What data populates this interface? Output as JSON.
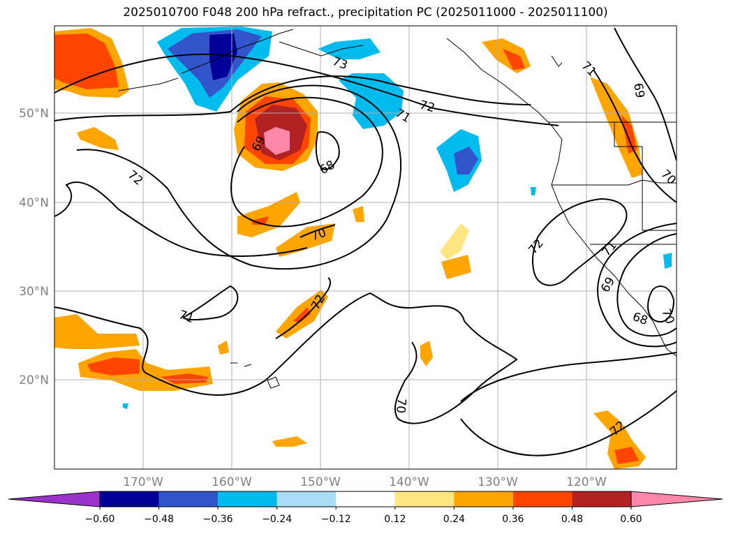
{
  "title": "2025010700 F048 200 hPa refract., precipitation PC (2025011000 - 2025011100)",
  "lat_labels": [
    "50°N",
    "40°N",
    "30°N",
    "20°N"
  ],
  "lon_labels": [
    "170°W",
    "160°W",
    "150°W",
    "140°W",
    "130°W",
    "120°W"
  ],
  "contour_labels": [
    {
      "id": "c73",
      "text": "73"
    },
    {
      "id": "c72a",
      "text": "72"
    },
    {
      "id": "c71a",
      "text": "71"
    },
    {
      "id": "c71b",
      "text": "71"
    },
    {
      "id": "c69a",
      "text": "69"
    },
    {
      "id": "c72b",
      "text": "72"
    },
    {
      "id": "c69b",
      "text": "69"
    },
    {
      "id": "c68a",
      "text": "68"
    },
    {
      "id": "c70a",
      "text": "70"
    },
    {
      "id": "c70b",
      "text": "70"
    },
    {
      "id": "c72c",
      "text": "72"
    },
    {
      "id": "c71c",
      "text": "71"
    },
    {
      "id": "c72d",
      "text": "72"
    },
    {
      "id": "c71d",
      "text": "71"
    },
    {
      "id": "c69c",
      "text": "69"
    },
    {
      "id": "c68b",
      "text": "68"
    },
    {
      "id": "c70c",
      "text": "70"
    },
    {
      "id": "c70d",
      "text": "70"
    },
    {
      "id": "c72e",
      "text": "72"
    }
  ],
  "colorbar": {
    "ticks": [
      "−0.60",
      "−0.48",
      "−0.36",
      "−0.24",
      "−0.12",
      "0.12",
      "0.24",
      "0.36",
      "0.48",
      "0.60"
    ],
    "colors": [
      "#9933cc",
      "#000099",
      "#3355cc",
      "#00bbee",
      "#aaddf5",
      "#ffffff",
      "#ffe680",
      "#ffa500",
      "#ff4500",
      "#b22222",
      "#ff88aa"
    ]
  }
}
